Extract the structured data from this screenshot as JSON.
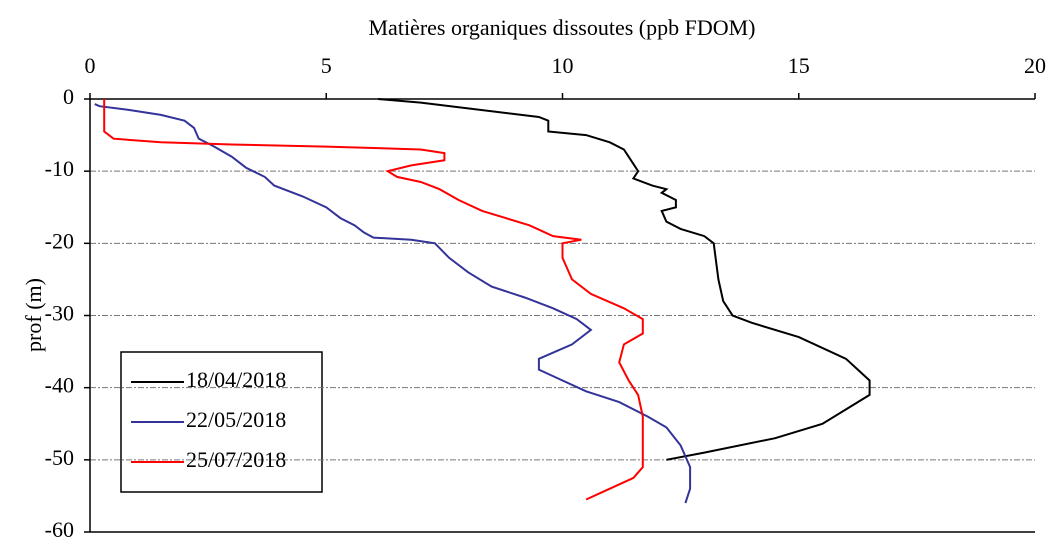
{
  "chart_data": {
    "type": "line",
    "x_label": "Matières organiques dissoutes (ppb FDOM)",
    "y_label": "prof (m)",
    "xlim": [
      0,
      20
    ],
    "xticks": [
      0,
      5,
      10,
      15,
      20
    ],
    "ylim": [
      -60,
      0
    ],
    "yticks": [
      0,
      -10,
      -20,
      -30,
      -40,
      -50,
      -60
    ],
    "grid": true,
    "legend": "lower left",
    "series": [
      {
        "name": "18/04/2018",
        "color": "#000000",
        "x": [
          6.1,
          7,
          9.5,
          9.7,
          9.7,
          10.5,
          11,
          11.3,
          11.5,
          11.6,
          11.5,
          11.9,
          12.2,
          12.1,
          12.4,
          12.4,
          12.1,
          12.2,
          12.5,
          13,
          13.2,
          13.3,
          13.4,
          13.6,
          14,
          15,
          16,
          16.5,
          16.5,
          15.5,
          14.5,
          13,
          12.2
        ],
        "values": [
          0,
          -0.5,
          -2.5,
          -3,
          -4.5,
          -5,
          -6,
          -7,
          -9,
          -10,
          -11,
          -12,
          -12.5,
          -13,
          -14,
          -15,
          -15.5,
          -17,
          -18,
          -19,
          -20,
          -25,
          -28,
          -30,
          -31,
          -33,
          -36,
          -39,
          -41,
          -45,
          -47,
          -49,
          -50
        ]
      },
      {
        "name": "22/05/2018",
        "color": "#333399",
        "x": [
          0.1,
          0.2,
          0.8,
          1.5,
          2,
          2.2,
          2.3,
          2.6,
          3,
          3.3,
          3.7,
          3.9,
          4.5,
          5,
          5.3,
          5.6,
          5.8,
          6,
          6.8,
          7.3,
          7.6,
          8,
          8.5,
          9.2,
          9.8,
          10.3,
          10.6,
          10.2,
          9.5,
          9.5,
          10,
          10.5,
          11.2,
          11.8,
          12.2,
          12.5,
          12.7,
          12.7,
          12.6
        ],
        "values": [
          -0.7,
          -1,
          -1.5,
          -2.2,
          -3,
          -4,
          -5.5,
          -6.5,
          -8,
          -9.5,
          -10.8,
          -12,
          -13.5,
          -15,
          -16.5,
          -17.5,
          -18.5,
          -19.2,
          -19.5,
          -20,
          -22,
          -24,
          -26,
          -27.5,
          -29,
          -30.5,
          -32,
          -34,
          -36,
          -37.5,
          -39,
          -40.5,
          -42,
          -44,
          -45.5,
          -48,
          -51,
          -54,
          -56
        ]
      },
      {
        "name": "25/07/2018",
        "color": "#ff0000",
        "x": [
          0.3,
          0.3,
          0.5,
          1.5,
          3,
          5,
          7,
          7.5,
          7.5,
          6.8,
          6.3,
          6.5,
          7,
          7.4,
          7.8,
          8.3,
          8.8,
          9.3,
          9.8,
          10.4,
          10,
          10,
          10.2,
          10.6,
          11.3,
          11.7,
          11.7,
          11.3,
          11.2,
          11.4,
          11.6,
          11.7,
          11.7,
          11.7,
          11.5,
          11,
          10.5
        ],
        "values": [
          0,
          -4.5,
          -5.5,
          -6,
          -6.3,
          -6.6,
          -7,
          -7.5,
          -8.5,
          -9.2,
          -10,
          -10.8,
          -11.5,
          -12.5,
          -14,
          -15.5,
          -16.5,
          -17.5,
          -19,
          -19.5,
          -20,
          -22,
          -25,
          -27,
          -29,
          -30.5,
          -32.5,
          -34,
          -36.5,
          -39,
          -41,
          -44,
          -48,
          -51,
          -52.5,
          -54,
          -55.5
        ]
      }
    ]
  }
}
